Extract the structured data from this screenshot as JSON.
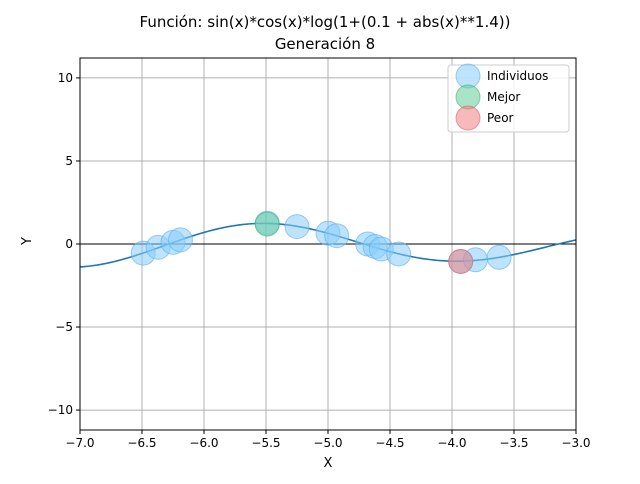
{
  "chart_data": {
    "type": "scatter",
    "title": "Función: sin(x)*cos(x)*log(1+(0.1 + abs(x)**1.4))",
    "subtitle": "Generación 8",
    "xlabel": "X",
    "ylabel": "Y",
    "xlim": [
      -7.0,
      -3.0
    ],
    "ylim": [
      -11.2,
      11.2
    ],
    "xticks": [
      -7.0,
      -6.5,
      -6.0,
      -5.5,
      -5.0,
      -4.5,
      -4.0,
      -3.5,
      -3.0
    ],
    "xtick_labels": [
      "−7.0",
      "−6.5",
      "−6.0",
      "−5.5",
      "−5.0",
      "−4.5",
      "−4.0",
      "−3.5",
      "−3.0"
    ],
    "yticks": [
      10,
      5,
      0,
      -5,
      -10
    ],
    "ytick_labels": [
      "10",
      "5",
      "0",
      "−5",
      "−10"
    ],
    "grid": true,
    "zero_line": true,
    "legend_position": "top-right",
    "function_line": {
      "color": "#1f77b4",
      "x_start": -7.0,
      "x_end": -3.0
    },
    "series": [
      {
        "name": "Individuos",
        "color": "#87cefa",
        "edge": "#5aaef0",
        "points": [
          {
            "x": -6.49,
            "y": -0.55
          },
          {
            "x": -6.37,
            "y": -0.2
          },
          {
            "x": -6.25,
            "y": 0.1
          },
          {
            "x": -6.19,
            "y": 0.25
          },
          {
            "x": -5.49,
            "y": 1.25
          },
          {
            "x": -5.25,
            "y": 1.05
          },
          {
            "x": -5.0,
            "y": 0.65
          },
          {
            "x": -4.93,
            "y": 0.5
          },
          {
            "x": -4.68,
            "y": 0.0
          },
          {
            "x": -4.62,
            "y": -0.15
          },
          {
            "x": -4.57,
            "y": -0.3
          },
          {
            "x": -4.43,
            "y": -0.6
          },
          {
            "x": -3.93,
            "y": -1.05
          },
          {
            "x": -3.81,
            "y": -0.95
          },
          {
            "x": -3.62,
            "y": -0.8
          }
        ]
      },
      {
        "name": "Mejor",
        "color": "#66cc99",
        "edge": "#3cb371",
        "points": [
          {
            "x": -5.49,
            "y": 1.2
          }
        ]
      },
      {
        "name": "Peor",
        "color": "#f08080",
        "edge": "#e06070",
        "points": [
          {
            "x": -3.93,
            "y": -1.05
          }
        ]
      }
    ]
  }
}
